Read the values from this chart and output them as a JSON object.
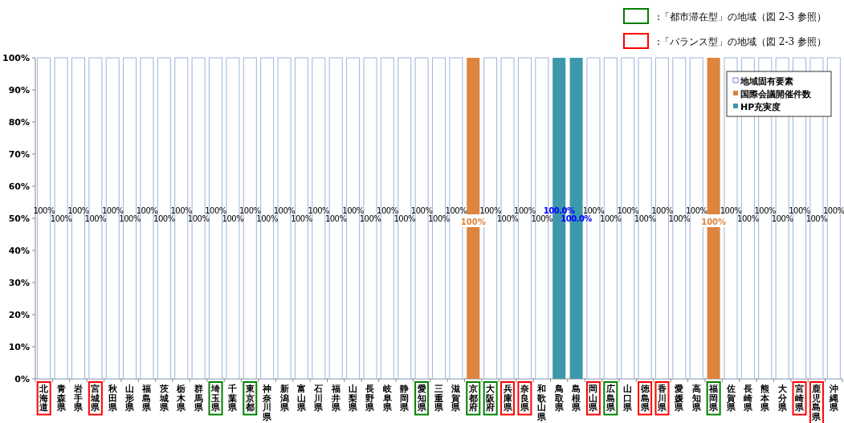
{
  "chart_data": {
    "type": "bar",
    "categories": [
      "北海道",
      "青森県",
      "岩手県",
      "宮城県",
      "秋田県",
      "山形県",
      "福島県",
      "茨城県",
      "栃木県",
      "群馬県",
      "埼玉県",
      "千葉県",
      "東京都",
      "神奈川県",
      "新潟県",
      "富山県",
      "石川県",
      "福井県",
      "山梨県",
      "長野県",
      "岐阜県",
      "静岡県",
      "愛知県",
      "三重県",
      "滋賀県",
      "京都府",
      "大阪府",
      "兵庫県",
      "奈良県",
      "和歌山県",
      "鳥取県",
      "島根県",
      "岡山県",
      "広島県",
      "山口県",
      "徳島県",
      "香川県",
      "愛媛県",
      "高知県",
      "福岡県",
      "佐賀県",
      "長崎県",
      "熊本県",
      "大分県",
      "宮崎県",
      "鹿児島県",
      "沖縄県"
    ],
    "series": [
      {
        "name": "地域固有要素",
        "color": "#ffffff",
        "values": [
          100,
          100,
          100,
          100,
          100,
          100,
          100,
          100,
          100,
          100,
          100,
          100,
          100,
          100,
          100,
          100,
          100,
          100,
          100,
          100,
          100,
          100,
          100,
          100,
          100,
          null,
          100,
          100,
          100,
          100,
          null,
          null,
          100,
          100,
          100,
          100,
          100,
          100,
          100,
          null,
          100,
          100,
          100,
          100,
          100,
          100,
          100
        ],
        "value_labels": [
          "100%",
          "100%",
          "100%",
          "100%",
          "100%",
          "100%",
          "100%",
          "100%",
          "100%",
          "100%",
          "100%",
          "100%",
          "100%",
          "100%",
          "100%",
          "100%",
          "100%",
          "100%",
          "100%",
          "100%",
          "100%",
          "100%",
          "100%",
          "100%",
          "100%",
          null,
          "100%",
          "100%",
          "100%",
          "100%",
          null,
          null,
          "100%",
          "100%",
          "100%",
          "100%",
          "100%",
          "100%",
          "100%",
          null,
          "100%",
          "100%",
          "100%",
          "100%",
          "100%",
          "100%",
          "100%"
        ]
      },
      {
        "name": "国際会議開催件数",
        "color": "#dd843f",
        "values": [
          null,
          null,
          null,
          null,
          null,
          null,
          null,
          null,
          null,
          null,
          null,
          null,
          null,
          null,
          null,
          null,
          null,
          null,
          null,
          null,
          null,
          null,
          null,
          null,
          null,
          100,
          null,
          null,
          null,
          null,
          null,
          null,
          null,
          null,
          null,
          null,
          null,
          null,
          null,
          100,
          null,
          null,
          null,
          null,
          null,
          null,
          null
        ],
        "value_labels": [
          null,
          null,
          null,
          null,
          null,
          null,
          null,
          null,
          null,
          null,
          null,
          null,
          null,
          null,
          null,
          null,
          null,
          null,
          null,
          null,
          null,
          null,
          null,
          null,
          null,
          "100%",
          null,
          null,
          null,
          null,
          null,
          null,
          null,
          null,
          null,
          null,
          null,
          null,
          null,
          "100%",
          null,
          null,
          null,
          null,
          null,
          null,
          null
        ]
      },
      {
        "name": "HP充実度",
        "color": "#3e98ac",
        "values": [
          null,
          null,
          null,
          null,
          null,
          null,
          null,
          null,
          null,
          null,
          null,
          null,
          null,
          null,
          null,
          null,
          null,
          null,
          null,
          null,
          null,
          null,
          null,
          null,
          null,
          null,
          null,
          null,
          null,
          null,
          100,
          100,
          null,
          null,
          null,
          null,
          null,
          null,
          null,
          null,
          null,
          null,
          null,
          null,
          null,
          null,
          null
        ],
        "value_labels": [
          null,
          null,
          null,
          null,
          null,
          null,
          null,
          null,
          null,
          null,
          null,
          null,
          null,
          null,
          null,
          null,
          null,
          null,
          null,
          null,
          null,
          null,
          null,
          null,
          null,
          null,
          null,
          null,
          null,
          null,
          "100.0%",
          "100.0%",
          null,
          null,
          null,
          null,
          null,
          null,
          null,
          null,
          null,
          null,
          null,
          null,
          null,
          null,
          null
        ]
      }
    ],
    "ylim": [
      0,
      100
    ],
    "yticks": [
      {
        "value": 0,
        "label": "0%"
      },
      {
        "value": 10,
        "label": "10%"
      },
      {
        "value": 20,
        "label": "20%"
      },
      {
        "value": 30,
        "label": "30%"
      },
      {
        "value": 40,
        "label": "40%"
      },
      {
        "value": 50,
        "label": "50%"
      },
      {
        "value": 60,
        "label": "60%"
      },
      {
        "value": 70,
        "label": "70%"
      },
      {
        "value": 80,
        "label": "80%"
      },
      {
        "value": 90,
        "label": "90%"
      },
      {
        "value": 100,
        "label": "100%"
      }
    ],
    "legend": "top right",
    "annotations": [
      ":「都市滞在型」の地域（図 2-3 参照）",
      ":「バランス型」の地域（図 2-3 参照）"
    ]
  }
}
